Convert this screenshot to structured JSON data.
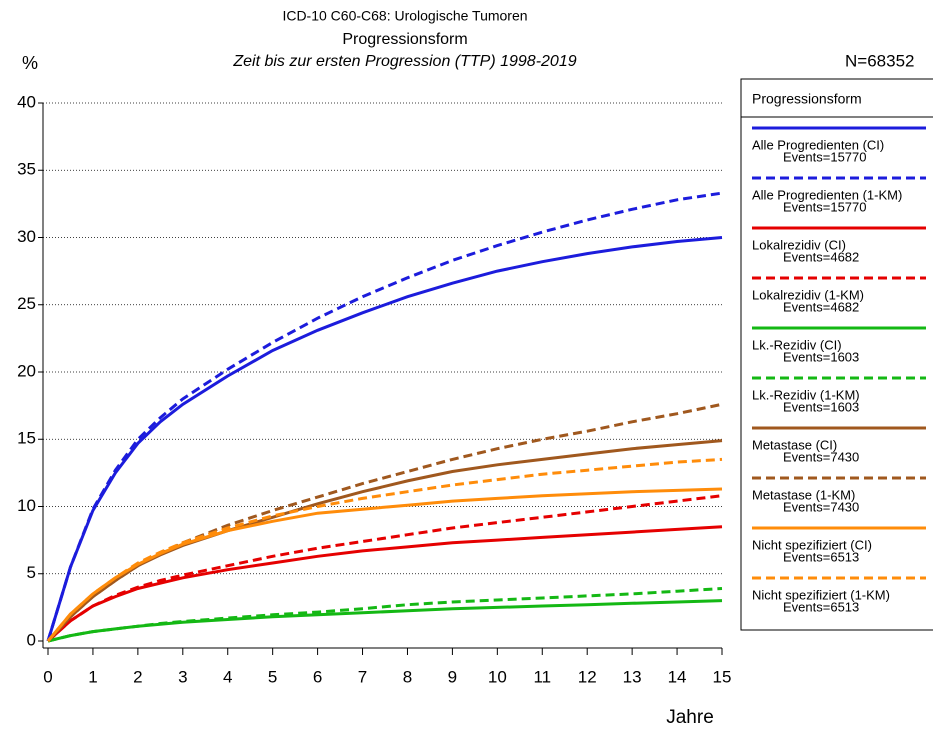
{
  "chart_data": {
    "type": "line",
    "title": "ICD-10 C60-C68: Urologische Tumoren",
    "subtitle": "Progressionsform",
    "subtitle2": "Zeit bis zur ersten Progression (TTP) 1998-2019",
    "y_label": "%",
    "x_label": "Jahre",
    "annotation": "N=68352",
    "legend_title": "Progressionsform",
    "legend_position": "right",
    "grid": true,
    "xlim": [
      0,
      15
    ],
    "xticks": [
      0,
      1,
      2,
      3,
      4,
      5,
      6,
      7,
      8,
      9,
      10,
      11,
      12,
      13,
      14,
      15
    ],
    "ylim": [
      0,
      40
    ],
    "yticks": [
      0,
      5,
      10,
      15,
      20,
      25,
      30,
      35,
      40
    ],
    "x": [
      0,
      0.5,
      1,
      1.5,
      2,
      2.5,
      3,
      4,
      5,
      6,
      7,
      8,
      9,
      10,
      11,
      12,
      13,
      14,
      15
    ],
    "series": [
      {
        "name": "Alle Progredienten (CI)",
        "events_label": "Events=15770",
        "color": "#1c1cdc",
        "dashed": false,
        "values": [
          0,
          5.5,
          9.7,
          12.5,
          14.7,
          16.3,
          17.6,
          19.7,
          21.6,
          23.1,
          24.4,
          25.6,
          26.6,
          27.5,
          28.2,
          28.8,
          29.3,
          29.7,
          30.0
        ]
      },
      {
        "name": "Alle Progredienten (1-KM)",
        "events_label": "Events=15770",
        "color": "#1c1cdc",
        "dashed": true,
        "values": [
          0,
          5.5,
          9.8,
          12.7,
          15,
          16.6,
          18,
          20.2,
          22.2,
          24,
          25.6,
          27,
          28.3,
          29.4,
          30.4,
          31.3,
          32.1,
          32.8,
          33.3
        ]
      },
      {
        "name": "Lokalrezidiv (CI)",
        "events_label": "Events=4682",
        "color": "#e50000",
        "dashed": false,
        "values": [
          0,
          1.5,
          2.6,
          3.3,
          3.9,
          4.3,
          4.7,
          5.3,
          5.8,
          6.3,
          6.7,
          7,
          7.3,
          7.5,
          7.7,
          7.9,
          8.1,
          8.3,
          8.5
        ]
      },
      {
        "name": "Lokalrezidiv (1-KM)",
        "events_label": "Events=4682",
        "color": "#e50000",
        "dashed": true,
        "values": [
          0,
          1.5,
          2.6,
          3.4,
          4,
          4.5,
          4.9,
          5.6,
          6.3,
          6.9,
          7.4,
          7.9,
          8.4,
          8.8,
          9.2,
          9.6,
          10,
          10.4,
          10.8
        ]
      },
      {
        "name": "Lk.-Rezidiv (CI)",
        "events_label": "Events=1603",
        "color": "#14b814",
        "dashed": false,
        "values": [
          0,
          0.4,
          0.7,
          0.9,
          1.1,
          1.25,
          1.4,
          1.6,
          1.8,
          1.95,
          2.1,
          2.25,
          2.4,
          2.5,
          2.6,
          2.7,
          2.8,
          2.9,
          3.0
        ]
      },
      {
        "name": "Lk.-Rezidiv (1-KM)",
        "events_label": "Events=1603",
        "color": "#14b814",
        "dashed": true,
        "values": [
          0,
          0.4,
          0.7,
          0.9,
          1.1,
          1.3,
          1.45,
          1.7,
          1.95,
          2.15,
          2.4,
          2.7,
          2.9,
          3.05,
          3.2,
          3.35,
          3.5,
          3.7,
          3.9
        ]
      },
      {
        "name": "Metastase (CI)",
        "events_label": "Events=7430",
        "color": "#a0581e",
        "dashed": false,
        "values": [
          0,
          1.8,
          3.3,
          4.5,
          5.6,
          6.4,
          7.1,
          8.2,
          9.2,
          10.2,
          11.1,
          11.9,
          12.6,
          13.1,
          13.5,
          13.9,
          14.3,
          14.6,
          14.9
        ]
      },
      {
        "name": "Metastase (1-KM)",
        "events_label": "Events=7430",
        "color": "#a0581e",
        "dashed": true,
        "values": [
          0,
          1.8,
          3.3,
          4.5,
          5.6,
          6.5,
          7.3,
          8.6,
          9.7,
          10.7,
          11.7,
          12.6,
          13.5,
          14.3,
          15,
          15.6,
          16.3,
          16.9,
          17.6
        ]
      },
      {
        "name": "Nicht spezifiziert (CI)",
        "events_label": "Events=6513",
        "color": "#ff8c0a",
        "dashed": false,
        "values": [
          0,
          2,
          3.5,
          4.7,
          5.7,
          6.5,
          7.2,
          8.2,
          8.9,
          9.5,
          9.8,
          10.1,
          10.4,
          10.6,
          10.8,
          10.95,
          11.1,
          11.2,
          11.3
        ]
      },
      {
        "name": "Nicht spezifiziert (1-KM)",
        "events_label": "Events=6513",
        "color": "#ff8c0a",
        "dashed": true,
        "values": [
          0,
          2,
          3.5,
          4.7,
          5.8,
          6.6,
          7.3,
          8.4,
          9.3,
          10,
          10.6,
          11.1,
          11.6,
          12,
          12.4,
          12.7,
          13,
          13.3,
          13.5
        ]
      }
    ]
  }
}
